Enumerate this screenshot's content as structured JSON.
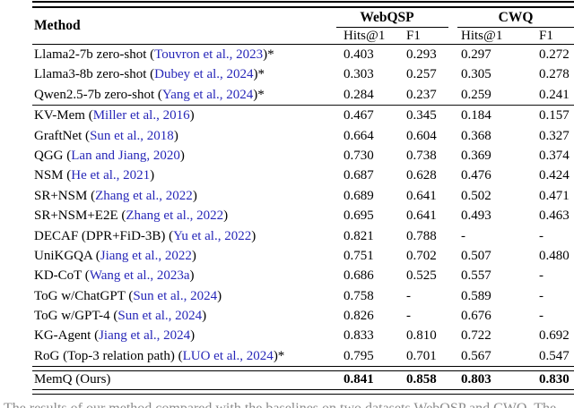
{
  "table": {
    "header": {
      "method_label": "Method",
      "groups": [
        {
          "label": "WebQSP"
        },
        {
          "label": "CWQ"
        }
      ],
      "subcolumns": [
        "Hits@1",
        "F1",
        "Hits@1",
        "F1"
      ]
    },
    "rows": [
      {
        "pre": "Llama2-7b zero-shot (",
        "cite": "Touvron et al., 2023",
        "post": ")*",
        "values": [
          "0.403",
          "0.293",
          "0.297",
          "0.272"
        ],
        "bold": false,
        "sep": "none"
      },
      {
        "pre": "Llama3-8b zero-shot (",
        "cite": "Dubey et al., 2024",
        "post": ")*",
        "values": [
          "0.303",
          "0.257",
          "0.305",
          "0.278"
        ],
        "bold": false,
        "sep": "none"
      },
      {
        "pre": "Qwen2.5-7b zero-shot (",
        "cite": "Yang et al., 2024",
        "post": ")*",
        "values": [
          "0.284",
          "0.237",
          "0.259",
          "0.241"
        ],
        "bold": false,
        "sep": "single"
      },
      {
        "pre": "KV-Mem (",
        "cite": "Miller et al., 2016",
        "post": ")",
        "values": [
          "0.467",
          "0.345",
          "0.184",
          "0.157"
        ],
        "bold": false,
        "sep": "none"
      },
      {
        "pre": "GraftNet (",
        "cite": "Sun et al., 2018",
        "post": ")",
        "values": [
          "0.664",
          "0.604",
          "0.368",
          "0.327"
        ],
        "bold": false,
        "sep": "none"
      },
      {
        "pre": "QGG (",
        "cite": "Lan and Jiang, 2020",
        "post": ")",
        "values": [
          "0.730",
          "0.738",
          "0.369",
          "0.374"
        ],
        "bold": false,
        "sep": "none"
      },
      {
        "pre": "NSM (",
        "cite": "He et al., 2021",
        "post": ")",
        "values": [
          "0.687",
          "0.628",
          "0.476",
          "0.424"
        ],
        "bold": false,
        "sep": "none"
      },
      {
        "pre": "SR+NSM (",
        "cite": "Zhang et al., 2022",
        "post": ")",
        "values": [
          "0.689",
          "0.641",
          "0.502",
          "0.471"
        ],
        "bold": false,
        "sep": "none"
      },
      {
        "pre": "SR+NSM+E2E (",
        "cite": "Zhang et al., 2022",
        "post": ")",
        "values": [
          "0.695",
          "0.641",
          "0.493",
          "0.463"
        ],
        "bold": false,
        "sep": "none"
      },
      {
        "pre": "DECAF (DPR+FiD-3B) (",
        "cite": "Yu et al., 2022",
        "post": ")",
        "values": [
          "0.821",
          "0.788",
          "-",
          "-"
        ],
        "bold": false,
        "sep": "none"
      },
      {
        "pre": "UniKGQA (",
        "cite": "Jiang et al., 2022",
        "post": ")",
        "values": [
          "0.751",
          "0.702",
          "0.507",
          "0.480"
        ],
        "bold": false,
        "sep": "none"
      },
      {
        "pre": "KD-CoT (",
        "cite": "Wang et al., 2023a",
        "post": ")",
        "values": [
          "0.686",
          "0.525",
          "0.557",
          "-"
        ],
        "bold": false,
        "sep": "none"
      },
      {
        "pre": "ToG w/ChatGPT (",
        "cite": "Sun et al., 2024",
        "post": ")",
        "values": [
          "0.758",
          "-",
          "0.589",
          "-"
        ],
        "bold": false,
        "sep": "none"
      },
      {
        "pre": "ToG w/GPT-4 (",
        "cite": "Sun et al., 2024",
        "post": ")",
        "values": [
          "0.826",
          "-",
          "0.676",
          "-"
        ],
        "bold": false,
        "sep": "none"
      },
      {
        "pre": "KG-Agent (",
        "cite": "Jiang et al., 2024",
        "post": ")",
        "values": [
          "0.833",
          "0.810",
          "0.722",
          "0.692"
        ],
        "bold": false,
        "sep": "none"
      },
      {
        "pre": "RoG (Top-3 relation path) (",
        "cite": "LUO et al., 2024",
        "post": ")*",
        "values": [
          "0.795",
          "0.701",
          "0.567",
          "0.547"
        ],
        "bold": false,
        "sep": "double"
      },
      {
        "pre": "MemQ (Ours)",
        "cite": "",
        "post": "",
        "values": [
          "0.841",
          "0.858",
          "0.803",
          "0.830"
        ],
        "bold": true,
        "sep": "double"
      }
    ]
  },
  "caption": {
    "text": "The results of our method compared with the baselines on two datasets WebQSP and CWQ. The"
  },
  "colors": {
    "citation_blue": "#2626b8",
    "text": "#000000"
  }
}
